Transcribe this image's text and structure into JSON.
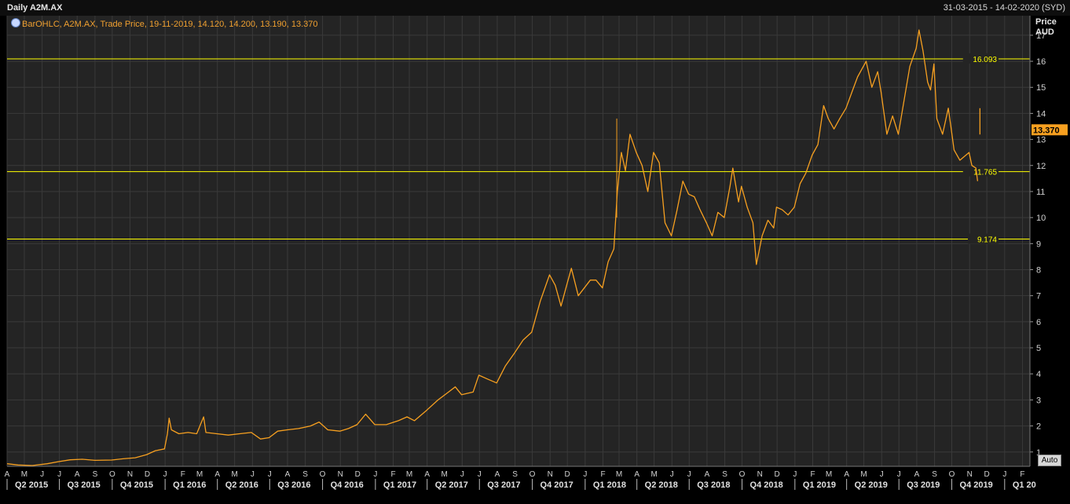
{
  "header": {
    "title": "Daily A2M.AX",
    "date_range": "31-03-2015 - 14-02-2020 (SYD)",
    "legend": "BarOHLC, A2M.AX, Trade Price, 19-11-2019, 14.120, 14.200, 13.190, 13.370",
    "unit_line1": "Price",
    "unit_line2": "AUD",
    "auto_button": "Auto"
  },
  "colors": {
    "background": "#000000",
    "plot_background": "#242424",
    "grid": "#3a3a3a",
    "series": "#f7a020",
    "hlines": "#ffff00",
    "axis_text": "#d0d0d0"
  },
  "chart_data": {
    "type": "line",
    "series": [
      {
        "values": [
          [
            "2015-04-01",
            0.55
          ],
          [
            "2015-04-20",
            0.5
          ],
          [
            "2015-05-15",
            0.48
          ],
          [
            "2015-06-10",
            0.55
          ],
          [
            "2015-06-30",
            0.63
          ],
          [
            "2015-07-20",
            0.7
          ],
          [
            "2015-08-10",
            0.72
          ],
          [
            "2015-09-01",
            0.68
          ],
          [
            "2015-09-30",
            0.69
          ],
          [
            "2015-10-20",
            0.74
          ],
          [
            "2015-11-10",
            0.78
          ],
          [
            "2015-11-30",
            0.9
          ],
          [
            "2015-12-15",
            1.05
          ],
          [
            "2015-12-31",
            1.12
          ],
          [
            "2016-01-05",
            1.7
          ],
          [
            "2016-01-08",
            2.3
          ],
          [
            "2016-01-12",
            1.85
          ],
          [
            "2016-01-25",
            1.7
          ],
          [
            "2016-02-10",
            1.75
          ],
          [
            "2016-02-25",
            1.7
          ],
          [
            "2016-03-08",
            2.35
          ],
          [
            "2016-03-12",
            1.75
          ],
          [
            "2016-03-31",
            1.7
          ],
          [
            "2016-04-20",
            1.65
          ],
          [
            "2016-05-10",
            1.7
          ],
          [
            "2016-05-30",
            1.75
          ],
          [
            "2016-06-15",
            1.5
          ],
          [
            "2016-06-30",
            1.55
          ],
          [
            "2016-07-15",
            1.8
          ],
          [
            "2016-08-01",
            1.85
          ],
          [
            "2016-08-20",
            1.9
          ],
          [
            "2016-09-10",
            2.0
          ],
          [
            "2016-09-25",
            2.15
          ],
          [
            "2016-10-10",
            1.85
          ],
          [
            "2016-10-31",
            1.8
          ],
          [
            "2016-11-15",
            1.9
          ],
          [
            "2016-11-30",
            2.05
          ],
          [
            "2016-12-15",
            2.45
          ],
          [
            "2016-12-31",
            2.05
          ],
          [
            "2017-01-20",
            2.05
          ],
          [
            "2017-02-10",
            2.2
          ],
          [
            "2017-02-25",
            2.35
          ],
          [
            "2017-03-10",
            2.2
          ],
          [
            "2017-03-31",
            2.6
          ],
          [
            "2017-04-20",
            3.0
          ],
          [
            "2017-05-05",
            3.25
          ],
          [
            "2017-05-20",
            3.5
          ],
          [
            "2017-05-31",
            3.2
          ],
          [
            "2017-06-20",
            3.3
          ],
          [
            "2017-06-30",
            3.95
          ],
          [
            "2017-07-15",
            3.8
          ],
          [
            "2017-07-31",
            3.65
          ],
          [
            "2017-08-15",
            4.3
          ],
          [
            "2017-08-31",
            4.8
          ],
          [
            "2017-09-15",
            5.3
          ],
          [
            "2017-09-30",
            5.6
          ],
          [
            "2017-10-15",
            6.8
          ],
          [
            "2017-10-31",
            7.8
          ],
          [
            "2017-11-10",
            7.4
          ],
          [
            "2017-11-20",
            6.6
          ],
          [
            "2017-12-01",
            7.5
          ],
          [
            "2017-12-08",
            8.05
          ],
          [
            "2017-12-20",
            7.0
          ],
          [
            "2018-01-10",
            7.6
          ],
          [
            "2018-01-20",
            7.6
          ],
          [
            "2018-01-31",
            7.3
          ],
          [
            "2018-02-10",
            8.3
          ],
          [
            "2018-02-20",
            8.8
          ],
          [
            "2018-02-26",
            11.0
          ],
          [
            "2018-03-05",
            12.5
          ],
          [
            "2018-03-12",
            11.8
          ],
          [
            "2018-03-20",
            13.2
          ],
          [
            "2018-03-31",
            12.5
          ],
          [
            "2018-04-10",
            12.0
          ],
          [
            "2018-04-20",
            11.0
          ],
          [
            "2018-04-30",
            12.5
          ],
          [
            "2018-05-10",
            12.1
          ],
          [
            "2018-05-20",
            9.8
          ],
          [
            "2018-05-31",
            9.3
          ],
          [
            "2018-06-10",
            10.3
          ],
          [
            "2018-06-20",
            11.4
          ],
          [
            "2018-06-30",
            10.9
          ],
          [
            "2018-07-10",
            10.8
          ],
          [
            "2018-07-20",
            10.3
          ],
          [
            "2018-07-31",
            9.8
          ],
          [
            "2018-08-10",
            9.3
          ],
          [
            "2018-08-20",
            10.2
          ],
          [
            "2018-08-31",
            10.0
          ],
          [
            "2018-09-10",
            11.2
          ],
          [
            "2018-09-15",
            11.9
          ],
          [
            "2018-09-25",
            10.6
          ],
          [
            "2018-09-30",
            11.2
          ],
          [
            "2018-10-10",
            10.4
          ],
          [
            "2018-10-20",
            9.8
          ],
          [
            "2018-10-26",
            8.2
          ],
          [
            "2018-11-05",
            9.3
          ],
          [
            "2018-11-15",
            9.9
          ],
          [
            "2018-11-25",
            9.6
          ],
          [
            "2018-11-30",
            10.4
          ],
          [
            "2018-12-10",
            10.3
          ],
          [
            "2018-12-20",
            10.1
          ],
          [
            "2018-12-31",
            10.4
          ],
          [
            "2019-01-10",
            11.3
          ],
          [
            "2019-01-20",
            11.7
          ],
          [
            "2019-01-31",
            12.4
          ],
          [
            "2019-02-10",
            12.8
          ],
          [
            "2019-02-20",
            14.3
          ],
          [
            "2019-02-28",
            13.8
          ],
          [
            "2019-03-10",
            13.4
          ],
          [
            "2019-03-20",
            13.8
          ],
          [
            "2019-03-31",
            14.2
          ],
          [
            "2019-04-10",
            14.8
          ],
          [
            "2019-04-20",
            15.4
          ],
          [
            "2019-04-30",
            15.8
          ],
          [
            "2019-05-05",
            16.0
          ],
          [
            "2019-05-15",
            15.0
          ],
          [
            "2019-05-25",
            15.6
          ],
          [
            "2019-05-31",
            14.8
          ],
          [
            "2019-06-10",
            13.2
          ],
          [
            "2019-06-20",
            13.9
          ],
          [
            "2019-06-30",
            13.2
          ],
          [
            "2019-07-10",
            14.5
          ],
          [
            "2019-07-20",
            15.8
          ],
          [
            "2019-07-31",
            16.5
          ],
          [
            "2019-08-05",
            17.2
          ],
          [
            "2019-08-12",
            16.4
          ],
          [
            "2019-08-20",
            15.2
          ],
          [
            "2019-08-25",
            14.9
          ],
          [
            "2019-08-31",
            15.9
          ],
          [
            "2019-09-05",
            13.8
          ],
          [
            "2019-09-15",
            13.2
          ],
          [
            "2019-09-25",
            14.2
          ],
          [
            "2019-09-30",
            13.4
          ],
          [
            "2019-10-05",
            12.6
          ],
          [
            "2019-10-15",
            12.2
          ],
          [
            "2019-10-31",
            12.5
          ],
          [
            "2019-11-05",
            12.0
          ],
          [
            "2019-11-12",
            11.9
          ],
          [
            "2019-11-15",
            11.4
          ],
          [
            "2019-11-19",
            13.37
          ]
        ]
      }
    ],
    "spike": {
      "date": "2019-11-19",
      "high": 14.2,
      "low": 13.19
    },
    "hlines": [
      16.093,
      11.765,
      9.174
    ],
    "last_price_label": "13.370",
    "xlim": [
      "2015-04-01",
      "2020-02-14"
    ],
    "ylim": [
      0.45,
      17.75
    ],
    "y_ticks": [
      1,
      2,
      3,
      4,
      5,
      6,
      7,
      8,
      9,
      10,
      11,
      12,
      13,
      14,
      15,
      16,
      17
    ],
    "x_tick_months": [
      "A",
      "M",
      "J",
      "J",
      "A",
      "S",
      "O",
      "N",
      "D",
      "J",
      "F",
      "M",
      "A",
      "M",
      "J",
      "J",
      "A",
      "S",
      "O",
      "N",
      "D",
      "J",
      "F",
      "M",
      "A",
      "M",
      "J",
      "J",
      "A",
      "S",
      "O",
      "N",
      "D",
      "J",
      "F",
      "M",
      "A",
      "M",
      "J",
      "J",
      "A",
      "S",
      "O",
      "N",
      "D",
      "J",
      "F",
      "M",
      "A",
      "M",
      "J",
      "J",
      "A",
      "S",
      "O",
      "N",
      "D",
      "J",
      "F"
    ],
    "month_tick_dates": [
      "2015-04-01",
      "2015-05-01",
      "2015-06-01",
      "2015-07-01",
      "2015-08-01",
      "2015-09-01",
      "2015-10-01",
      "2015-11-01",
      "2015-12-01",
      "2016-01-01",
      "2016-02-01",
      "2016-03-01",
      "2016-04-01",
      "2016-05-01",
      "2016-06-01",
      "2016-07-01",
      "2016-08-01",
      "2016-09-01",
      "2016-10-01",
      "2016-11-01",
      "2016-12-01",
      "2017-01-01",
      "2017-02-01",
      "2017-03-01",
      "2017-04-01",
      "2017-05-01",
      "2017-06-01",
      "2017-07-01",
      "2017-08-01",
      "2017-09-01",
      "2017-10-01",
      "2017-11-01",
      "2017-12-01",
      "2018-01-01",
      "2018-02-01",
      "2018-03-01",
      "2018-04-01",
      "2018-05-01",
      "2018-06-01",
      "2018-07-01",
      "2018-08-01",
      "2018-09-01",
      "2018-10-01",
      "2018-11-01",
      "2018-12-01",
      "2019-01-01",
      "2019-02-01",
      "2019-03-01",
      "2019-04-01",
      "2019-05-01",
      "2019-06-01",
      "2019-07-01",
      "2019-08-01",
      "2019-09-01",
      "2019-10-01",
      "2019-11-01",
      "2019-12-01",
      "2020-01-01",
      "2020-02-01"
    ],
    "quarter_labels": [
      "Q2 2015",
      "Q3 2015",
      "Q4 2015",
      "Q1 2016",
      "Q2 2016",
      "Q3 2016",
      "Q4 2016",
      "Q1 2017",
      "Q2 2017",
      "Q3 2017",
      "Q4 2017",
      "Q1 2018",
      "Q2 2018",
      "Q3 2018",
      "Q4 2018",
      "Q1 2019",
      "Q2 2019",
      "Q3 2019",
      "Q4 2019",
      "Q1 20"
    ],
    "quarter_starts": [
      "2015-04-01",
      "2015-07-01",
      "2015-10-01",
      "2016-01-01",
      "2016-04-01",
      "2016-07-01",
      "2016-10-01",
      "2017-01-01",
      "2017-04-01",
      "2017-07-01",
      "2017-10-01",
      "2018-01-01",
      "2018-04-01",
      "2018-07-01",
      "2018-10-01",
      "2019-01-01",
      "2019-04-01",
      "2019-07-01",
      "2019-10-01",
      "2020-01-01"
    ]
  }
}
